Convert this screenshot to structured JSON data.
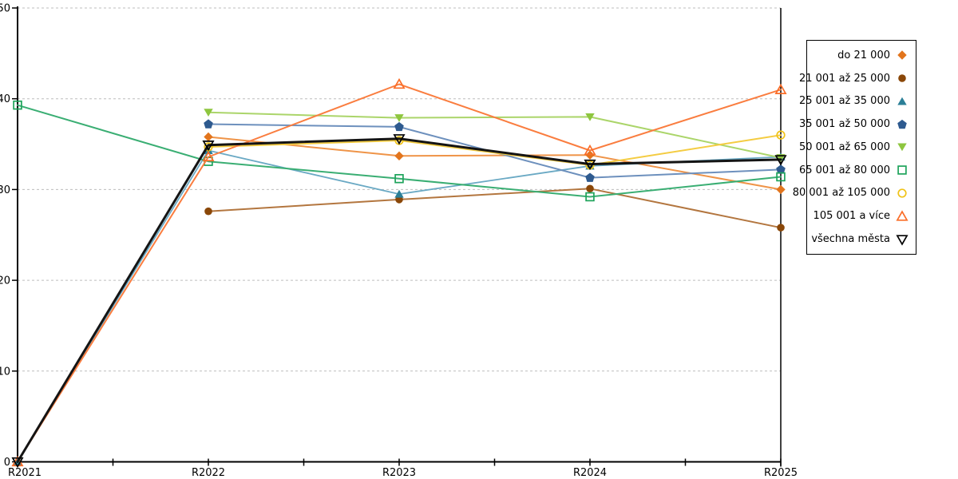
{
  "chart_data": {
    "type": "line",
    "title": "",
    "categories": [
      "R2021",
      "R2022",
      "R2023",
      "R2024",
      "R2025"
    ],
    "y_axis": {
      "min": 0,
      "max": 50,
      "ticks": [
        0,
        10,
        20,
        30,
        40,
        50
      ]
    },
    "grid": "horizontal-dashed",
    "legend_position": "right",
    "series": [
      {
        "name": "do 21 000",
        "marker": "diamond-filled",
        "color": "#e2751d",
        "line_color": "#ef9448",
        "line_width": 2,
        "values": [
          null,
          35.8,
          33.7,
          33.8,
          30.0
        ]
      },
      {
        "name": "21 001 až 25 000",
        "marker": "circle-filled",
        "color": "#8a4708",
        "line_color": "#b3763f",
        "line_width": 2,
        "values": [
          null,
          27.6,
          28.9,
          30.1,
          25.8
        ]
      },
      {
        "name": "25 001 až 35 000",
        "marker": "triangle-up-filled",
        "color": "#2b7f97",
        "line_color": "#6aa9c4",
        "line_width": 1.8,
        "values": [
          0,
          34.3,
          29.5,
          32.6,
          33.6
        ]
      },
      {
        "name": "35 001 až 50 000",
        "marker": "pentagon-filled",
        "color": "#2e5a8f",
        "line_color": "#6d90bd",
        "line_width": 2,
        "values": [
          null,
          37.2,
          36.9,
          31.3,
          32.2
        ]
      },
      {
        "name": "50 001 až 65 000",
        "marker": "triangle-down-filled",
        "color": "#8ec63f",
        "line_color": "#abd56a",
        "line_width": 2,
        "values": [
          null,
          38.5,
          37.9,
          38.0,
          33.5
        ]
      },
      {
        "name": "65 001 až 80 000",
        "marker": "square-open",
        "color": "#1ea35b",
        "line_color": "#3aae73",
        "line_width": 2,
        "values": [
          39.3,
          33.1,
          31.2,
          29.2,
          31.4
        ]
      },
      {
        "name": "80 001 až 105 000",
        "marker": "circle-open",
        "color": "#f0c319",
        "line_color": "#f4cc42",
        "line_width": 2,
        "values": [
          null,
          34.7,
          35.4,
          32.7,
          36.0
        ]
      },
      {
        "name": "105 001 a více",
        "marker": "triangle-up-open",
        "color": "#fa6d28",
        "line_color": "#fa7d3f",
        "line_width": 2,
        "values": [
          0,
          33.6,
          41.6,
          34.3,
          41.0
        ]
      },
      {
        "name": "všechna města",
        "marker": "triangle-down-open",
        "color": "#000000",
        "line_color": "#141414",
        "line_width": 3,
        "values": [
          0,
          34.9,
          35.6,
          32.8,
          33.3
        ]
      }
    ]
  },
  "colors": {
    "background": "#ffffff",
    "axis": "#000000",
    "gridline": "#bdbdbd",
    "legend_border": "#000000"
  }
}
